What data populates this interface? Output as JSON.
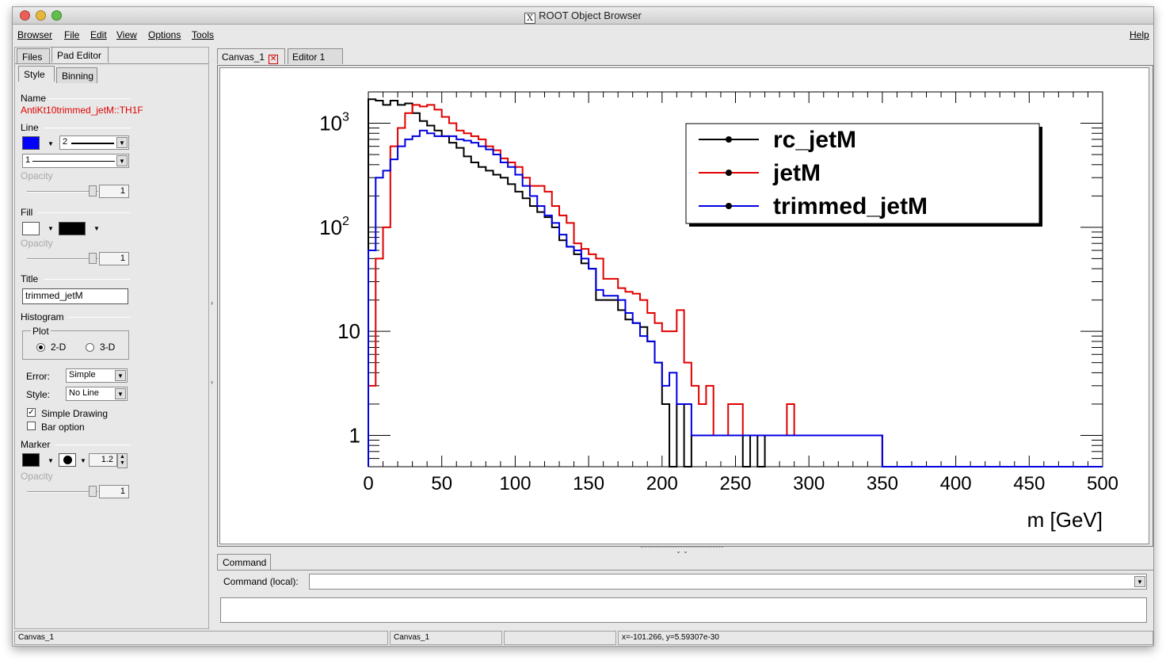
{
  "window": {
    "title": "ROOT Object Browser"
  },
  "menu": {
    "browser": "Browser",
    "file": "File",
    "edit": "Edit",
    "view": "View",
    "options": "Options",
    "tools": "Tools",
    "help": "Help"
  },
  "left_tabs": {
    "files": "Files",
    "pad_editor": "Pad Editor",
    "style": "Style",
    "binning": "Binning"
  },
  "editor": {
    "name_label": "Name",
    "object_name": "AntiKt10trimmed_jetM::TH1F",
    "line_label": "Line",
    "line_color": "#0000ff",
    "line_width": "2",
    "line_style": "1",
    "opacity_label": "Opacity",
    "line_opacity": "1",
    "fill_label": "Fill",
    "fill_color": "#ffffff",
    "fill_pattern_color": "#000000",
    "fill_opacity": "1",
    "title_label": "Title",
    "title_value": "trimmed_jetM",
    "histogram_label": "Histogram",
    "plot_label": "Plot",
    "plot_2d": "2-D",
    "plot_3d": "3-D",
    "error_label": "Error:",
    "error_value": "Simple",
    "style_label": "Style:",
    "style_value": "No Line",
    "simple_drawing": "Simple Drawing",
    "bar_option": "Bar option",
    "marker_label": "Marker",
    "marker_color": "#000000",
    "marker_size": "1.2",
    "marker_opacity": "1"
  },
  "doc_tabs": {
    "canvas": "Canvas_1",
    "editor": "Editor 1"
  },
  "command": {
    "tab": "Command",
    "label": "Command (local):"
  },
  "status": {
    "cell1": "Canvas_1",
    "cell2": "Canvas_1",
    "cell3": "",
    "coords": "x=-101.266, y=5.59307e-30"
  },
  "chart_data": {
    "type": "line",
    "plot_style": "step histogram",
    "xlabel": "m [GeV]",
    "ylabel": "",
    "xlim": [
      0,
      500
    ],
    "ylim": [
      0.5,
      2000
    ],
    "yscale": "log",
    "x_tick_labels": [
      "0",
      "50",
      "100",
      "150",
      "200",
      "250",
      "300",
      "350",
      "400",
      "450",
      "500"
    ],
    "y_tick_labels": [
      {
        "value": 1,
        "base": "1",
        "exp": ""
      },
      {
        "value": 10,
        "base": "10",
        "exp": ""
      },
      {
        "value": 100,
        "base": "10",
        "exp": "2"
      },
      {
        "value": 1000,
        "base": "10",
        "exp": "3"
      }
    ],
    "legend_position": "top-right",
    "bin_edges": [
      0,
      5,
      10,
      15,
      20,
      25,
      30,
      35,
      40,
      45,
      50,
      55,
      60,
      65,
      70,
      75,
      80,
      85,
      90,
      95,
      100,
      105,
      110,
      115,
      120,
      125,
      130,
      135,
      140,
      145,
      150,
      155,
      160,
      165,
      170,
      175,
      180,
      185,
      190,
      195,
      200,
      205,
      210,
      215,
      220,
      225,
      230,
      235,
      240,
      245,
      250,
      255,
      260,
      265,
      270,
      275,
      280,
      285,
      290,
      295,
      300,
      305,
      310,
      315,
      320,
      325,
      330,
      335,
      340,
      345,
      350
    ],
    "series": [
      {
        "name": "rc_jetM",
        "color": "#000000",
        "values": [
          1700,
          1650,
          1500,
          1650,
          1500,
          1550,
          1250,
          1050,
          950,
          850,
          750,
          650,
          580,
          480,
          420,
          380,
          350,
          320,
          300,
          260,
          220,
          190,
          160,
          140,
          125,
          100,
          75,
          65,
          55,
          45,
          40,
          20,
          20,
          20,
          16,
          13,
          12,
          11,
          8,
          5,
          2,
          0,
          2,
          0,
          1,
          1,
          1,
          1,
          1,
          1,
          1,
          0,
          1,
          0,
          1,
          1,
          1,
          1,
          1,
          1,
          1,
          1,
          1,
          1,
          1,
          1,
          1,
          1,
          1,
          1
        ]
      },
      {
        "name": "jetM",
        "color": "#e00000",
        "values": [
          3,
          50,
          100,
          600,
          900,
          1250,
          1500,
          1450,
          1500,
          1350,
          1150,
          1000,
          850,
          800,
          750,
          700,
          600,
          550,
          460,
          420,
          380,
          300,
          250,
          250,
          220,
          160,
          130,
          110,
          70,
          62,
          55,
          50,
          32,
          32,
          26,
          24,
          23,
          20,
          15,
          12,
          10,
          10,
          16,
          5,
          3,
          2,
          3,
          1,
          1,
          2,
          2,
          1,
          1,
          1,
          1,
          1,
          1,
          2,
          1,
          1,
          1,
          1,
          1,
          1,
          1,
          1,
          1,
          1,
          1,
          1
        ]
      },
      {
        "name": "trimmed_jetM",
        "color": "#0000e0",
        "values": [
          60,
          300,
          350,
          450,
          600,
          700,
          750,
          850,
          800,
          750,
          750,
          750,
          700,
          680,
          650,
          600,
          560,
          500,
          420,
          380,
          320,
          250,
          200,
          160,
          130,
          110,
          85,
          65,
          60,
          50,
          40,
          25,
          22,
          22,
          20,
          15,
          12,
          9,
          8,
          5,
          3,
          4,
          2,
          2,
          1,
          1,
          1,
          1,
          1,
          1,
          1,
          1,
          1,
          1,
          1,
          1,
          1,
          1,
          1,
          1,
          1,
          1,
          1,
          1,
          1,
          1,
          1,
          1,
          1,
          1
        ]
      }
    ]
  }
}
